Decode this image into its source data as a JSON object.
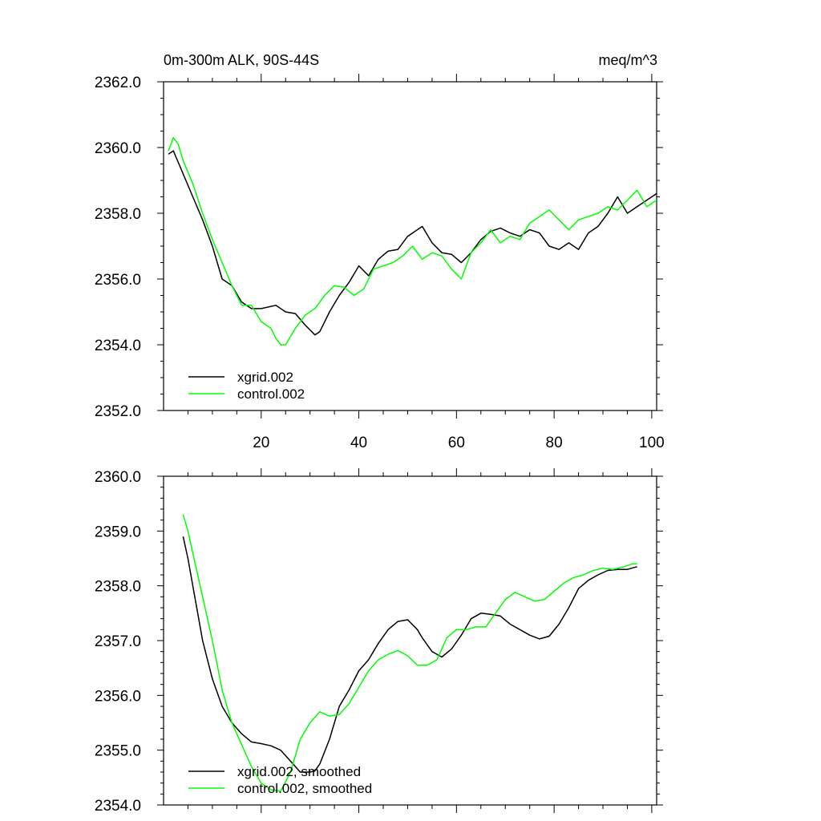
{
  "chart_data": [
    {
      "type": "line",
      "title": "0m-300m ALK, 90S-44S",
      "units": "meq/m^3",
      "xlim": [
        0,
        101
      ],
      "ylim": [
        2352.0,
        2362.0
      ],
      "x_ticks": [
        20,
        40,
        60,
        80,
        100
      ],
      "x_tick_labels": [
        "20",
        "40",
        "60",
        "80",
        "100"
      ],
      "y_ticks": [
        2352,
        2354,
        2356,
        2358,
        2360,
        2362
      ],
      "y_tick_labels": [
        "2352.0",
        "2354.0",
        "2356.0",
        "2358.0",
        "2360.0",
        "2362.0"
      ],
      "legend_position": "bottom-left",
      "series": [
        {
          "name": "xgrid.002",
          "color": "#000000",
          "x": [
            1,
            2,
            4,
            6,
            8,
            10,
            12,
            14,
            16,
            18,
            20,
            23,
            25,
            27,
            29,
            31,
            32,
            34,
            36,
            38,
            40,
            42,
            44,
            46,
            48,
            50,
            52,
            53,
            55,
            57,
            59,
            61,
            63,
            65,
            67,
            69,
            71,
            73,
            75,
            77,
            79,
            81,
            83,
            85,
            87,
            89,
            91,
            93,
            95,
            97,
            99,
            101
          ],
          "y": [
            2359.8,
            2359.9,
            2359.2,
            2358.5,
            2357.8,
            2357.0,
            2356.0,
            2355.8,
            2355.3,
            2355.1,
            2355.1,
            2355.2,
            2355.0,
            2354.95,
            2354.6,
            2354.3,
            2354.4,
            2355.0,
            2355.5,
            2355.9,
            2356.4,
            2356.1,
            2356.6,
            2356.85,
            2356.9,
            2357.3,
            2357.5,
            2357.6,
            2357.1,
            2356.8,
            2356.75,
            2356.5,
            2356.8,
            2357.2,
            2357.45,
            2357.55,
            2357.4,
            2357.3,
            2357.5,
            2357.4,
            2357.0,
            2356.9,
            2357.1,
            2356.9,
            2357.4,
            2357.6,
            2358.0,
            2358.5,
            2358.0,
            2358.2,
            2358.4,
            2358.6
          ]
        },
        {
          "name": "control.002",
          "color": "#00ff00",
          "x": [
            1,
            2,
            3,
            4,
            6,
            8,
            10,
            12,
            14,
            16,
            18,
            20,
            22,
            23,
            24,
            25,
            27,
            29,
            31,
            33,
            35,
            37,
            39,
            41,
            43,
            45,
            47,
            49,
            51,
            53,
            55,
            57,
            59,
            61,
            63,
            65,
            67,
            69,
            71,
            73,
            75,
            77,
            79,
            81,
            83,
            85,
            87,
            89,
            91,
            93,
            95,
            97,
            99,
            101
          ],
          "y": [
            2359.9,
            2360.3,
            2360.1,
            2359.6,
            2358.9,
            2358.0,
            2357.2,
            2356.5,
            2355.8,
            2355.2,
            2355.2,
            2354.7,
            2354.5,
            2354.2,
            2354.0,
            2354.0,
            2354.5,
            2354.9,
            2355.1,
            2355.5,
            2355.8,
            2355.75,
            2355.5,
            2355.7,
            2356.3,
            2356.4,
            2356.5,
            2356.7,
            2357.0,
            2356.6,
            2356.8,
            2356.7,
            2356.3,
            2356.0,
            2356.8,
            2357.1,
            2357.5,
            2357.1,
            2357.3,
            2357.2,
            2357.7,
            2357.9,
            2358.1,
            2357.8,
            2357.5,
            2357.8,
            2357.9,
            2358.0,
            2358.2,
            2358.1,
            2358.4,
            2358.7,
            2358.2,
            2358.4
          ]
        }
      ]
    },
    {
      "type": "line",
      "xlim": [
        0,
        101
      ],
      "ylim": [
        2354.0,
        2360.0
      ],
      "x_ticks": [
        20,
        40,
        60,
        80,
        100
      ],
      "y_ticks": [
        2354,
        2355,
        2356,
        2357,
        2358,
        2359,
        2360
      ],
      "y_tick_labels": [
        "2354.0",
        "2355.0",
        "2356.0",
        "2357.0",
        "2358.0",
        "2359.0",
        "2360.0"
      ],
      "legend_position": "bottom-left",
      "series": [
        {
          "name": "xgrid.002, smoothed",
          "color": "#000000",
          "x": [
            4,
            5,
            6,
            7,
            8,
            10,
            12,
            14,
            16,
            18,
            20,
            22,
            24,
            26,
            28,
            30,
            31,
            32,
            34,
            36,
            38,
            40,
            42,
            44,
            46,
            48,
            50,
            52,
            53,
            55,
            57,
            59,
            61,
            63,
            65,
            67,
            69,
            71,
            73,
            75,
            77,
            79,
            81,
            83,
            85,
            87,
            89,
            91,
            93,
            95,
            97
          ],
          "y": [
            2358.9,
            2358.5,
            2358.0,
            2357.5,
            2357.0,
            2356.3,
            2355.8,
            2355.5,
            2355.3,
            2355.15,
            2355.12,
            2355.08,
            2355.0,
            2354.8,
            2354.6,
            2354.6,
            2354.62,
            2354.75,
            2355.2,
            2355.8,
            2356.1,
            2356.45,
            2356.65,
            2356.95,
            2357.2,
            2357.35,
            2357.38,
            2357.2,
            2357.05,
            2356.8,
            2356.7,
            2356.85,
            2357.1,
            2357.4,
            2357.5,
            2357.48,
            2357.45,
            2357.3,
            2357.2,
            2357.1,
            2357.03,
            2357.08,
            2357.3,
            2357.6,
            2357.95,
            2358.1,
            2358.2,
            2358.28,
            2358.3,
            2358.3,
            2358.35
          ]
        },
        {
          "name": "control.002, smoothed",
          "color": "#00ff00",
          "x": [
            4,
            5,
            6,
            8,
            10,
            12,
            14,
            16,
            18,
            20,
            22,
            24,
            26,
            28,
            30,
            32,
            34,
            36,
            38,
            40,
            42,
            44,
            46,
            48,
            50,
            52,
            54,
            56,
            58,
            60,
            62,
            64,
            66,
            68,
            70,
            72,
            74,
            76,
            78,
            80,
            82,
            84,
            86,
            88,
            90,
            92,
            94,
            96,
            97
          ],
          "y": [
            2359.3,
            2359.0,
            2358.6,
            2357.8,
            2357.0,
            2356.1,
            2355.5,
            2355.1,
            2354.7,
            2354.4,
            2354.28,
            2354.25,
            2354.6,
            2355.2,
            2355.5,
            2355.7,
            2355.62,
            2355.65,
            2355.85,
            2356.15,
            2356.45,
            2356.65,
            2356.75,
            2356.82,
            2356.72,
            2356.55,
            2356.55,
            2356.65,
            2357.05,
            2357.2,
            2357.2,
            2357.25,
            2357.25,
            2357.5,
            2357.75,
            2357.88,
            2357.8,
            2357.72,
            2357.75,
            2357.9,
            2358.05,
            2358.15,
            2358.2,
            2358.28,
            2358.32,
            2358.3,
            2358.34,
            2358.4,
            2358.4
          ]
        }
      ]
    }
  ]
}
